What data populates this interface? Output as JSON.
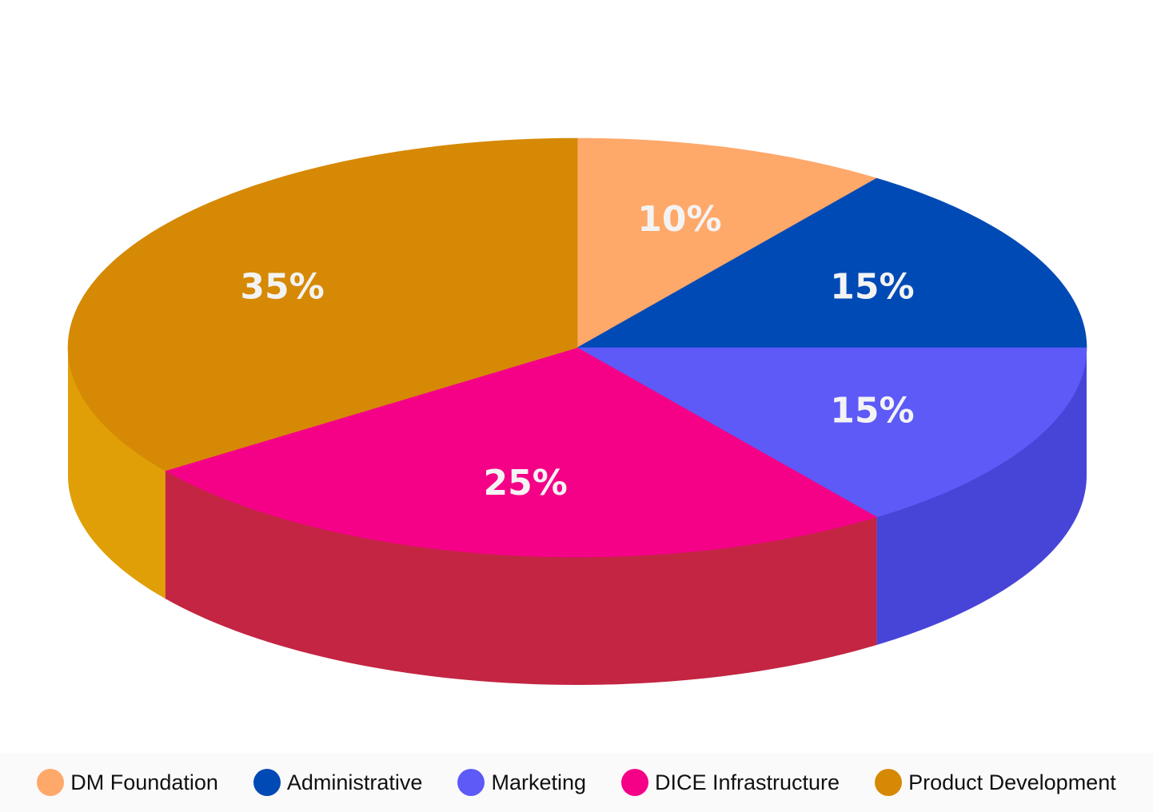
{
  "chart_data": {
    "type": "pie",
    "style": "3d",
    "title": "",
    "legend_position": "bottom",
    "slices": [
      {
        "name": "DM Foundation",
        "value": 10,
        "label": "10%",
        "color": "#fea86a",
        "side_color": "#f0943f"
      },
      {
        "name": "Administrative",
        "value": 15,
        "label": "15%",
        "color": "#004ab5",
        "side_color": "#003a8c"
      },
      {
        "name": "Marketing",
        "value": 15,
        "label": "15%",
        "color": "#5d5af8",
        "side_color": "#4744d8"
      },
      {
        "name": "DICE Infrastructure",
        "value": 25,
        "label": "25%",
        "color": "#f50188",
        "side_color": "#c32542"
      },
      {
        "name": "Product Development",
        "value": 35,
        "label": "35%",
        "color": "#d68905",
        "side_color": "#e09f06"
      }
    ]
  },
  "legend": {
    "items": [
      {
        "label": "DM Foundation",
        "color": "#fea86a"
      },
      {
        "label": "Administrative",
        "color": "#004ab5"
      },
      {
        "label": "Marketing",
        "color": "#5d5af8"
      },
      {
        "label": "DICE Infrastructure",
        "color": "#f50188"
      },
      {
        "label": "Product Development",
        "color": "#d68905"
      }
    ]
  }
}
